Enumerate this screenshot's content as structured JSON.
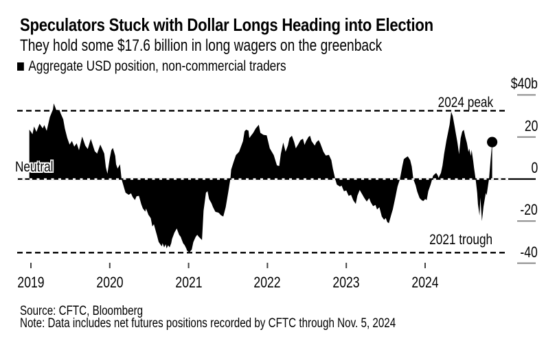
{
  "header": {
    "title": "Speculators Stuck with Dollar Longs Heading into Election",
    "subtitle": "They hold some $17.6 billion in long wagers on the greenback"
  },
  "legend": {
    "label": "Aggregate USD position, non-commercial traders",
    "marker_color": "#000000"
  },
  "footer": {
    "source": "Source: CFTC, Bloomberg",
    "note": "Note: Data includes net futures positions recorded by CFTC through Nov. 5, 2024"
  },
  "chart_data": {
    "type": "area",
    "title": "Speculators Stuck with Dollar Longs Heading into Election",
    "subtitle": "They hold some $17.6 billion in long wagers on the greenback",
    "series_name": "Aggregate USD position, non-commercial traders",
    "unit": "billions of US dollars",
    "fill_color": "#000000",
    "background": "#ffffff",
    "grid": false,
    "legend_position": "top-left",
    "xlim": [
      2018.83,
      2025.07
    ],
    "ylim": [
      -45,
      42
    ],
    "x_ticks": [
      "2019",
      "2020",
      "2021",
      "2022",
      "2023",
      "2024"
    ],
    "y_ticks": [
      {
        "label": "$40b",
        "value": 40
      },
      {
        "label": "20",
        "value": 20
      },
      {
        "label": "0",
        "value": 0
      },
      {
        "label": "-20",
        "value": -20
      },
      {
        "label": "-40",
        "value": -40
      }
    ],
    "annotations": [
      {
        "text": "2024 peak",
        "value": 32.5,
        "style": "dashed"
      },
      {
        "text": "Neutral",
        "value": 0,
        "style": "dashed"
      },
      {
        "text": "2021 trough",
        "value": -35,
        "style": "dashed"
      }
    ],
    "end_marker": {
      "t": 2024.85,
      "v": 17.6
    },
    "points": [
      [
        2018.98,
        23.5
      ],
      [
        2019.0,
        22.5
      ],
      [
        2019.02,
        21.3
      ],
      [
        2019.04,
        25.0
      ],
      [
        2019.07,
        22.4
      ],
      [
        2019.11,
        26.3
      ],
      [
        2019.15,
        24.1
      ],
      [
        2019.17,
        25.7
      ],
      [
        2019.2,
        22.9
      ],
      [
        2019.24,
        29.5
      ],
      [
        2019.28,
        33.1
      ],
      [
        2019.29,
        36.0
      ],
      [
        2019.31,
        34.0
      ],
      [
        2019.33,
        32.0
      ],
      [
        2019.36,
        33.0
      ],
      [
        2019.38,
        31.0
      ],
      [
        2019.41,
        28.4
      ],
      [
        2019.43,
        24.1
      ],
      [
        2019.46,
        19.7
      ],
      [
        2019.49,
        16.4
      ],
      [
        2019.52,
        18.1
      ],
      [
        2019.55,
        15.4
      ],
      [
        2019.58,
        17.0
      ],
      [
        2019.61,
        13.7
      ],
      [
        2019.65,
        20.2
      ],
      [
        2019.69,
        15.9
      ],
      [
        2019.72,
        14.3
      ],
      [
        2019.76,
        19.1
      ],
      [
        2019.81,
        13.2
      ],
      [
        2019.84,
        12.1
      ],
      [
        2019.88,
        16.4
      ],
      [
        2019.93,
        12.1
      ],
      [
        2019.95,
        5.6
      ],
      [
        2019.97,
        2.5
      ],
      [
        2020.0,
        9.9
      ],
      [
        2020.02,
        13.7
      ],
      [
        2020.04,
        14.8
      ],
      [
        2020.07,
        11.0
      ],
      [
        2020.08,
        7.0
      ],
      [
        2020.1,
        5.0
      ],
      [
        2020.13,
        7.0
      ],
      [
        2020.15,
        0.0
      ],
      [
        2020.18,
        -4.0
      ],
      [
        2020.2,
        -6.5
      ],
      [
        2020.24,
        -7.5
      ],
      [
        2020.27,
        -6.8
      ],
      [
        2020.29,
        -8.5
      ],
      [
        2020.32,
        -10.0
      ],
      [
        2020.34,
        -8.2
      ],
      [
        2020.37,
        -8.0
      ],
      [
        2020.4,
        -12.0
      ],
      [
        2020.42,
        -14.0
      ],
      [
        2020.45,
        -15.5
      ],
      [
        2020.46,
        -14.0
      ],
      [
        2020.49,
        -17.0
      ],
      [
        2020.52,
        -18.6
      ],
      [
        2020.54,
        -22.5
      ],
      [
        2020.56,
        -21.5
      ],
      [
        2020.59,
        -25.6
      ],
      [
        2020.6,
        -27.0
      ],
      [
        2020.62,
        -29.9
      ],
      [
        2020.64,
        -31.0
      ],
      [
        2020.66,
        -32.0
      ],
      [
        2020.67,
        -30.5
      ],
      [
        2020.69,
        -32.5
      ],
      [
        2020.71,
        -31.0
      ],
      [
        2020.72,
        -33.0
      ],
      [
        2020.74,
        -31.5
      ],
      [
        2020.76,
        -32.5
      ],
      [
        2020.78,
        -30.5
      ],
      [
        2020.79,
        -28.5
      ],
      [
        2020.82,
        -25.5
      ],
      [
        2020.85,
        -23.5
      ],
      [
        2020.86,
        -24.5
      ],
      [
        2020.88,
        -26.5
      ],
      [
        2020.9,
        -27.5
      ],
      [
        2020.92,
        -29.5
      ],
      [
        2020.93,
        -30.5
      ],
      [
        2020.95,
        -31.5
      ],
      [
        2020.97,
        -33.0
      ],
      [
        2020.98,
        -34.0
      ],
      [
        2021.01,
        -34.9
      ],
      [
        2021.04,
        -33.5
      ],
      [
        2021.06,
        -30.0
      ],
      [
        2021.09,
        -27.5
      ],
      [
        2021.11,
        -26.5
      ],
      [
        2021.13,
        -27.5
      ],
      [
        2021.17,
        -29.0
      ],
      [
        2021.19,
        -15.0
      ],
      [
        2021.22,
        -6.5
      ],
      [
        2021.24,
        -5.8
      ],
      [
        2021.26,
        -9.5
      ],
      [
        2021.29,
        -11.5
      ],
      [
        2021.31,
        -13.4
      ],
      [
        2021.34,
        -15.6
      ],
      [
        2021.38,
        -16.0
      ],
      [
        2021.41,
        -17.2
      ],
      [
        2021.44,
        -17.8
      ],
      [
        2021.47,
        -13.4
      ],
      [
        2021.5,
        -6.9
      ],
      [
        2021.53,
        0.0
      ],
      [
        2021.54,
        4.5
      ],
      [
        2021.57,
        8.0
      ],
      [
        2021.6,
        11.4
      ],
      [
        2021.64,
        13.0
      ],
      [
        2021.69,
        18.0
      ],
      [
        2021.71,
        22.7
      ],
      [
        2021.73,
        23.5
      ],
      [
        2021.76,
        23.0
      ],
      [
        2021.77,
        19.5
      ],
      [
        2021.8,
        21.0
      ],
      [
        2021.82,
        22.0
      ],
      [
        2021.85,
        24.0
      ],
      [
        2021.89,
        25.8
      ],
      [
        2021.91,
        22.0
      ],
      [
        2021.95,
        21.0
      ],
      [
        2021.99,
        20.8
      ],
      [
        2022.03,
        14.6
      ],
      [
        2022.08,
        11.4
      ],
      [
        2022.12,
        6.5
      ],
      [
        2022.15,
        6.2
      ],
      [
        2022.17,
        12.0
      ],
      [
        2022.2,
        17.4
      ],
      [
        2022.23,
        13.0
      ],
      [
        2022.26,
        16.0
      ],
      [
        2022.28,
        19.5
      ],
      [
        2022.31,
        20.6
      ],
      [
        2022.34,
        17.5
      ],
      [
        2022.36,
        14.6
      ],
      [
        2022.39,
        16.5
      ],
      [
        2022.42,
        18.5
      ],
      [
        2022.45,
        19.2
      ],
      [
        2022.47,
        16.2
      ],
      [
        2022.49,
        18.0
      ],
      [
        2022.52,
        20.0
      ],
      [
        2022.54,
        20.6
      ],
      [
        2022.56,
        18.0
      ],
      [
        2022.6,
        15.9
      ],
      [
        2022.62,
        17.5
      ],
      [
        2022.65,
        18.5
      ],
      [
        2022.67,
        17.0
      ],
      [
        2022.69,
        15.0
      ],
      [
        2022.71,
        13.0
      ],
      [
        2022.74,
        11.2
      ],
      [
        2022.78,
        11.5
      ],
      [
        2022.81,
        9.0
      ],
      [
        2022.83,
        4.9
      ],
      [
        2022.86,
        0.0
      ],
      [
        2022.88,
        -2.6
      ],
      [
        2022.92,
        -3.6
      ],
      [
        2022.94,
        -3.1
      ],
      [
        2022.97,
        -5.8
      ],
      [
        2023.0,
        -5.4
      ],
      [
        2023.03,
        -8.0
      ],
      [
        2023.06,
        -7.5
      ],
      [
        2023.09,
        -10.2
      ],
      [
        2023.12,
        -11.8
      ],
      [
        2023.14,
        -8.0
      ],
      [
        2023.17,
        -5.2
      ],
      [
        2023.19,
        -6.5
      ],
      [
        2023.23,
        -9.1
      ],
      [
        2023.26,
        -10.7
      ],
      [
        2023.29,
        -9.1
      ],
      [
        2023.31,
        -11.0
      ],
      [
        2023.34,
        -12.9
      ],
      [
        2023.37,
        -12.3
      ],
      [
        2023.39,
        -14.5
      ],
      [
        2023.42,
        -13.4
      ],
      [
        2023.45,
        -17.8
      ],
      [
        2023.48,
        -19.4
      ],
      [
        2023.5,
        -18.5
      ],
      [
        2023.52,
        -20.5
      ],
      [
        2023.54,
        -21.0
      ],
      [
        2023.57,
        -17.0
      ],
      [
        2023.59,
        -14.5
      ],
      [
        2023.62,
        -9.1
      ],
      [
        2023.65,
        -3.6
      ],
      [
        2023.68,
        0.0
      ],
      [
        2023.71,
        6.0
      ],
      [
        2023.73,
        9.5
      ],
      [
        2023.76,
        10.3
      ],
      [
        2023.78,
        10.8
      ],
      [
        2023.81,
        9.0
      ],
      [
        2023.83,
        6.0
      ],
      [
        2023.85,
        0.0
      ],
      [
        2023.88,
        -3.0
      ],
      [
        2023.9,
        -6.0
      ],
      [
        2023.93,
        -9.1
      ],
      [
        2023.96,
        -10.2
      ],
      [
        2023.98,
        -10.4
      ],
      [
        2024.0,
        -9.5
      ],
      [
        2024.02,
        -10.0
      ],
      [
        2024.04,
        -5.8
      ],
      [
        2024.07,
        -2.6
      ],
      [
        2024.09,
        0.0
      ],
      [
        2024.1,
        1.5
      ],
      [
        2024.12,
        2.3
      ],
      [
        2024.14,
        2.9
      ],
      [
        2024.16,
        1.7
      ],
      [
        2024.17,
        0.6
      ],
      [
        2024.2,
        2.9
      ],
      [
        2024.22,
        6.4
      ],
      [
        2024.24,
        11.8
      ],
      [
        2024.27,
        18.3
      ],
      [
        2024.31,
        25.8
      ],
      [
        2024.33,
        32.0
      ],
      [
        2024.35,
        30.0
      ],
      [
        2024.37,
        25.8
      ],
      [
        2024.39,
        21.5
      ],
      [
        2024.41,
        17.2
      ],
      [
        2024.43,
        11.8
      ],
      [
        2024.45,
        19.4
      ],
      [
        2024.47,
        22.6
      ],
      [
        2024.49,
        23.4
      ],
      [
        2024.51,
        20.0
      ],
      [
        2024.53,
        17.2
      ],
      [
        2024.55,
        12.9
      ],
      [
        2024.56,
        14.5
      ],
      [
        2024.58,
        11.0
      ],
      [
        2024.59,
        13.9
      ],
      [
        2024.61,
        8.5
      ],
      [
        2024.62,
        5.3
      ],
      [
        2024.64,
        0.0
      ],
      [
        2024.66,
        -6.6
      ],
      [
        2024.67,
        -12.0
      ],
      [
        2024.69,
        -17.4
      ],
      [
        2024.7,
        -8.8
      ],
      [
        2024.72,
        -20.0
      ],
      [
        2024.74,
        -13.1
      ],
      [
        2024.76,
        -8.8
      ],
      [
        2024.77,
        -6.6
      ],
      [
        2024.78,
        -7.7
      ],
      [
        2024.81,
        0.0
      ],
      [
        2024.83,
        9.0
      ],
      [
        2024.85,
        17.6
      ]
    ]
  }
}
